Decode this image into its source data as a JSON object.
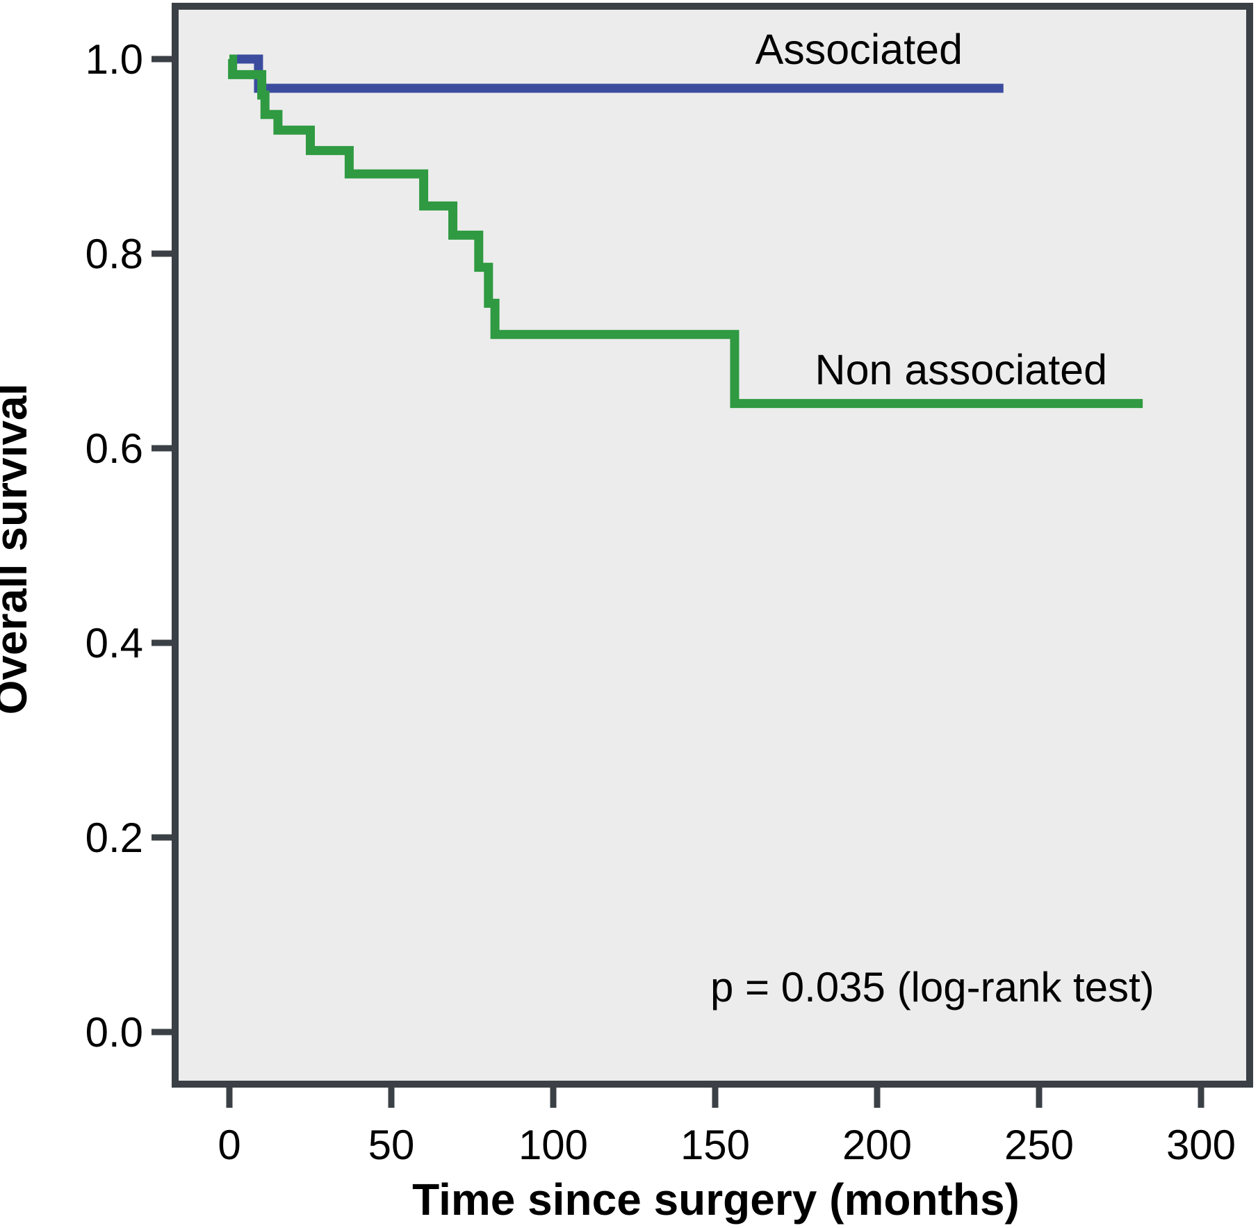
{
  "figure": {
    "background": "#ffffff",
    "plot_background": "#ECECEC",
    "axis_color": "#3A4045"
  },
  "chart_data": {
    "type": "line",
    "subtype": "kaplan-meier-step-curves",
    "title": "",
    "xlabel": "Time since surgery (months)",
    "ylabel": "Overall survival",
    "xlim": [
      0,
      300
    ],
    "ylim": [
      0.0,
      1.0
    ],
    "x_ticks": [
      0,
      50,
      100,
      150,
      200,
      250,
      300
    ],
    "y_ticks": [
      1.0,
      0.8,
      0.6,
      0.4,
      0.2,
      0.0
    ],
    "grid": false,
    "legend_position": "inline-annotations",
    "annotation": "p = 0.035 (log-rank test)",
    "series": [
      {
        "name": "Associated",
        "color": "#3B4C9F",
        "end_t": 239,
        "steps": [
          [
            0,
            1.0
          ],
          [
            9,
            0.97
          ]
        ]
      },
      {
        "name": "Non associated",
        "color": "#2F9A41",
        "end_t": 282,
        "steps": [
          [
            0,
            1.0
          ],
          [
            1,
            0.984
          ],
          [
            10,
            0.963
          ],
          [
            11,
            0.943
          ],
          [
            15,
            0.927
          ],
          [
            25,
            0.906
          ],
          [
            37,
            0.882
          ],
          [
            60,
            0.849
          ],
          [
            69,
            0.819
          ],
          [
            77,
            0.786
          ],
          [
            80,
            0.749
          ],
          [
            82,
            0.717
          ],
          [
            156,
            0.646
          ]
        ]
      }
    ]
  }
}
